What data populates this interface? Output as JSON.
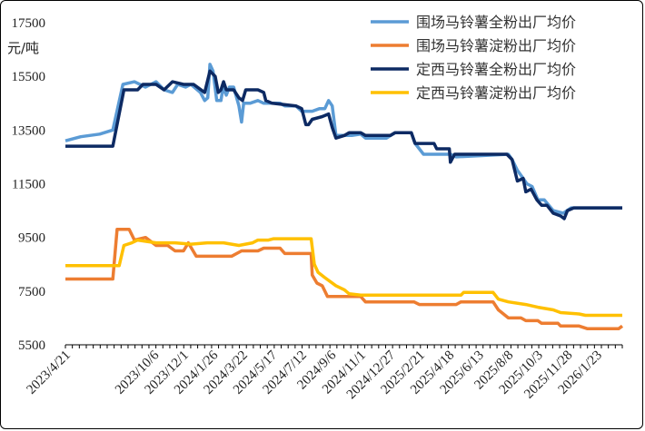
{
  "chart_data": {
    "type": "line",
    "title": "",
    "xlabel": "",
    "ylabel": "元/吨",
    "ylim": [
      5500,
      17500
    ],
    "y_ticks": [
      5500,
      7500,
      9500,
      11500,
      13500,
      15500,
      17500
    ],
    "grid": false,
    "legend_position": "top-right",
    "x_range": [
      "2023/4/21",
      "2026/3/12"
    ],
    "x_tick_labels": [
      "2023/4/21",
      "2023/10/6",
      "2023/12/1",
      "2024/1/26",
      "2024/3/22",
      "2024/5/17",
      "2024/7/12",
      "2024/9/6",
      "2024/11/1",
      "2024/12/27",
      "2025/2/21",
      "2025/4/18",
      "2025/6/13",
      "2025/8/8",
      "2025/10/3",
      "2025/11/28",
      "2026/1/23"
    ],
    "series": [
      {
        "name": "围场马铃薯全粉出厂均价",
        "color": "#5b9bd5",
        "points": [
          [
            "2023/4/21",
            13100
          ],
          [
            "2023/5/20",
            13250
          ],
          [
            "2023/6/25",
            13350
          ],
          [
            "2023/7/20",
            13500
          ],
          [
            "2023/8/8",
            15200
          ],
          [
            "2023/8/30",
            15300
          ],
          [
            "2023/9/20",
            15100
          ],
          [
            "2023/10/10",
            15300
          ],
          [
            "2023/10/25",
            15000
          ],
          [
            "2023/11/10",
            14900
          ],
          [
            "2023/11/20",
            15200
          ],
          [
            "2023/12/5",
            15100
          ],
          [
            "2023/12/15",
            15200
          ],
          [
            "2024/1/2",
            14900
          ],
          [
            "2024/1/10",
            14600
          ],
          [
            "2024/1/16",
            14700
          ],
          [
            "2024/1/20",
            15950
          ],
          [
            "2024/1/26",
            15700
          ],
          [
            "2024/2/2",
            14600
          ],
          [
            "2024/2/10",
            14600
          ],
          [
            "2024/2/14",
            15100
          ],
          [
            "2024/2/20",
            14800
          ],
          [
            "2024/2/26",
            15100
          ],
          [
            "2024/3/5",
            15100
          ],
          [
            "2024/3/15",
            14400
          ],
          [
            "2024/3/20",
            13800
          ],
          [
            "2024/3/24",
            14500
          ],
          [
            "2024/4/5",
            14500
          ],
          [
            "2024/4/20",
            14600
          ],
          [
            "2024/5/1",
            14500
          ],
          [
            "2024/6/1",
            14500
          ],
          [
            "2024/6/10",
            14400
          ],
          [
            "2024/7/1",
            14400
          ],
          [
            "2024/7/12",
            14200
          ],
          [
            "2024/8/1",
            14200
          ],
          [
            "2024/8/15",
            14300
          ],
          [
            "2024/8/25",
            14300
          ],
          [
            "2024/9/1",
            14600
          ],
          [
            "2024/9/8",
            14400
          ],
          [
            "2024/9/15",
            13300
          ],
          [
            "2024/10/1",
            13300
          ],
          [
            "2024/10/15",
            13300
          ],
          [
            "2024/11/1",
            13350
          ],
          [
            "2024/11/10",
            13200
          ],
          [
            "2024/12/20",
            13200
          ],
          [
            "2025/1/5",
            13400
          ],
          [
            "2025/2/5",
            13400
          ],
          [
            "2025/2/12",
            13000
          ],
          [
            "2025/2/28",
            12600
          ],
          [
            "2025/4/20",
            12600
          ],
          [
            "2025/5/1",
            12500
          ],
          [
            "2025/8/8",
            12600
          ],
          [
            "2025/8/15",
            12400
          ],
          [
            "2025/8/25",
            12000
          ],
          [
            "2025/9/5",
            11700
          ],
          [
            "2025/9/12",
            11500
          ],
          [
            "2025/9/22",
            11400
          ],
          [
            "2025/10/3",
            10900
          ],
          [
            "2025/10/15",
            10900
          ],
          [
            "2025/11/1",
            10500
          ],
          [
            "2025/11/20",
            10400
          ],
          [
            "2025/12/5",
            10600
          ],
          [
            "2026/1/1",
            10600
          ],
          [
            "2026/3/12",
            10600
          ]
        ]
      },
      {
        "name": "围场马铃薯淀粉出厂均价",
        "color": "#ed7d31",
        "points": [
          [
            "2023/4/21",
            7950
          ],
          [
            "2023/6/25",
            7950
          ],
          [
            "2023/7/20",
            7950
          ],
          [
            "2023/7/28",
            9800
          ],
          [
            "2023/8/20",
            9800
          ],
          [
            "2023/8/30",
            9400
          ],
          [
            "2023/9/20",
            9500
          ],
          [
            "2023/10/10",
            9200
          ],
          [
            "2023/11/1",
            9200
          ],
          [
            "2023/11/15",
            9000
          ],
          [
            "2023/12/1",
            9000
          ],
          [
            "2023/12/10",
            9300
          ],
          [
            "2023/12/25",
            8800
          ],
          [
            "2024/3/1",
            8800
          ],
          [
            "2024/3/20",
            9000
          ],
          [
            "2024/4/20",
            9000
          ],
          [
            "2024/5/1",
            9100
          ],
          [
            "2024/6/1",
            9100
          ],
          [
            "2024/6/10",
            8900
          ],
          [
            "2024/7/25",
            8900
          ],
          [
            "2024/7/30",
            8900
          ],
          [
            "2024/8/1",
            8100
          ],
          [
            "2024/8/10",
            7800
          ],
          [
            "2024/8/20",
            7700
          ],
          [
            "2024/8/30",
            7300
          ],
          [
            "2024/11/1",
            7300
          ],
          [
            "2024/11/10",
            7100
          ],
          [
            "2025/2/10",
            7100
          ],
          [
            "2025/2/20",
            7000
          ],
          [
            "2025/5/1",
            7000
          ],
          [
            "2025/5/10",
            7100
          ],
          [
            "2025/7/10",
            7100
          ],
          [
            "2025/7/20",
            6800
          ],
          [
            "2025/8/8",
            6500
          ],
          [
            "2025/9/1",
            6500
          ],
          [
            "2025/9/10",
            6400
          ],
          [
            "2025/10/3",
            6400
          ],
          [
            "2025/10/10",
            6300
          ],
          [
            "2025/11/10",
            6300
          ],
          [
            "2025/11/15",
            6200
          ],
          [
            "2025/12/20",
            6200
          ],
          [
            "2026/1/5",
            6100
          ],
          [
            "2026/3/5",
            6100
          ],
          [
            "2026/3/12",
            6200
          ]
        ]
      },
      {
        "name": "定西马铃薯全粉出厂均价",
        "color": "#0d2a63",
        "points": [
          [
            "2023/4/21",
            12900
          ],
          [
            "2023/7/20",
            12900
          ],
          [
            "2023/8/10",
            15000
          ],
          [
            "2023/9/5",
            15000
          ],
          [
            "2023/9/15",
            15200
          ],
          [
            "2023/10/10",
            15200
          ],
          [
            "2023/10/25",
            15000
          ],
          [
            "2023/11/10",
            15300
          ],
          [
            "2023/12/1",
            15200
          ],
          [
            "2023/12/20",
            15200
          ],
          [
            "2024/1/10",
            14900
          ],
          [
            "2024/1/20",
            15700
          ],
          [
            "2024/1/30",
            15500
          ],
          [
            "2024/2/5",
            14900
          ],
          [
            "2024/2/10",
            15000
          ],
          [
            "2024/2/15",
            15300
          ],
          [
            "2024/2/20",
            15000
          ],
          [
            "2024/3/5",
            15000
          ],
          [
            "2024/3/15",
            14700
          ],
          [
            "2024/3/22",
            14600
          ],
          [
            "2024/3/28",
            15000
          ],
          [
            "2024/4/20",
            15000
          ],
          [
            "2024/5/1",
            14900
          ],
          [
            "2024/5/5",
            14600
          ],
          [
            "2024/5/17",
            14500
          ],
          [
            "2024/7/1",
            14400
          ],
          [
            "2024/7/12",
            14300
          ],
          [
            "2024/7/20",
            13700
          ],
          [
            "2024/7/25",
            13700
          ],
          [
            "2024/8/1",
            13900
          ],
          [
            "2024/8/20",
            14000
          ],
          [
            "2024/9/1",
            14100
          ],
          [
            "2024/9/8",
            13600
          ],
          [
            "2024/9/15",
            13200
          ],
          [
            "2024/10/1",
            13300
          ],
          [
            "2024/10/10",
            13400
          ],
          [
            "2024/11/1",
            13400
          ],
          [
            "2024/11/10",
            13300
          ],
          [
            "2024/12/27",
            13300
          ],
          [
            "2025/1/5",
            13400
          ],
          [
            "2025/2/5",
            13400
          ],
          [
            "2025/2/12",
            13000
          ],
          [
            "2025/3/20",
            13000
          ],
          [
            "2025/3/25",
            12800
          ],
          [
            "2025/4/18",
            12800
          ],
          [
            "2025/4/20",
            12300
          ],
          [
            "2025/4/28",
            12600
          ],
          [
            "2025/8/5",
            12600
          ],
          [
            "2025/8/15",
            12400
          ],
          [
            "2025/8/25",
            11600
          ],
          [
            "2025/9/5",
            11700
          ],
          [
            "2025/9/10",
            11200
          ],
          [
            "2025/9/20",
            11300
          ],
          [
            "2025/10/1",
            10900
          ],
          [
            "2025/10/10",
            10700
          ],
          [
            "2025/10/20",
            10700
          ],
          [
            "2025/11/1",
            10400
          ],
          [
            "2025/11/15",
            10300
          ],
          [
            "2025/11/22",
            10200
          ],
          [
            "2025/11/28",
            10500
          ],
          [
            "2025/12/10",
            10600
          ],
          [
            "2026/1/1",
            10600
          ],
          [
            "2026/3/12",
            10600
          ]
        ]
      },
      {
        "name": "定西马铃薯淀粉出厂均价",
        "color": "#ffc000",
        "points": [
          [
            "2023/4/21",
            8450
          ],
          [
            "2023/7/20",
            8450
          ],
          [
            "2023/8/1",
            8450
          ],
          [
            "2023/8/10",
            9200
          ],
          [
            "2023/8/25",
            9300
          ],
          [
            "2023/9/5",
            9400
          ],
          [
            "2023/10/10",
            9300
          ],
          [
            "2023/11/15",
            9300
          ],
          [
            "2023/12/15",
            9250
          ],
          [
            "2024/1/15",
            9300
          ],
          [
            "2024/2/15",
            9300
          ],
          [
            "2024/3/1",
            9250
          ],
          [
            "2024/3/15",
            9200
          ],
          [
            "2024/4/10",
            9300
          ],
          [
            "2024/4/20",
            9400
          ],
          [
            "2024/5/10",
            9400
          ],
          [
            "2024/5/20",
            9450
          ],
          [
            "2024/7/20",
            9450
          ],
          [
            "2024/7/30",
            9450
          ],
          [
            "2024/8/5",
            8500
          ],
          [
            "2024/8/12",
            8200
          ],
          [
            "2024/8/25",
            8000
          ],
          [
            "2024/9/15",
            7700
          ],
          [
            "2024/10/1",
            7550
          ],
          [
            "2024/10/10",
            7400
          ],
          [
            "2024/11/1",
            7350
          ],
          [
            "2025/5/10",
            7350
          ],
          [
            "2025/5/15",
            7450
          ],
          [
            "2025/6/13",
            7450
          ],
          [
            "2025/7/10",
            7450
          ],
          [
            "2025/7/20",
            7200
          ],
          [
            "2025/8/8",
            7100
          ],
          [
            "2025/9/10",
            7000
          ],
          [
            "2025/10/3",
            6900
          ],
          [
            "2025/11/1",
            6800
          ],
          [
            "2025/11/15",
            6700
          ],
          [
            "2025/12/20",
            6650
          ],
          [
            "2026/1/1",
            6600
          ],
          [
            "2026/3/12",
            6600
          ]
        ]
      }
    ]
  }
}
